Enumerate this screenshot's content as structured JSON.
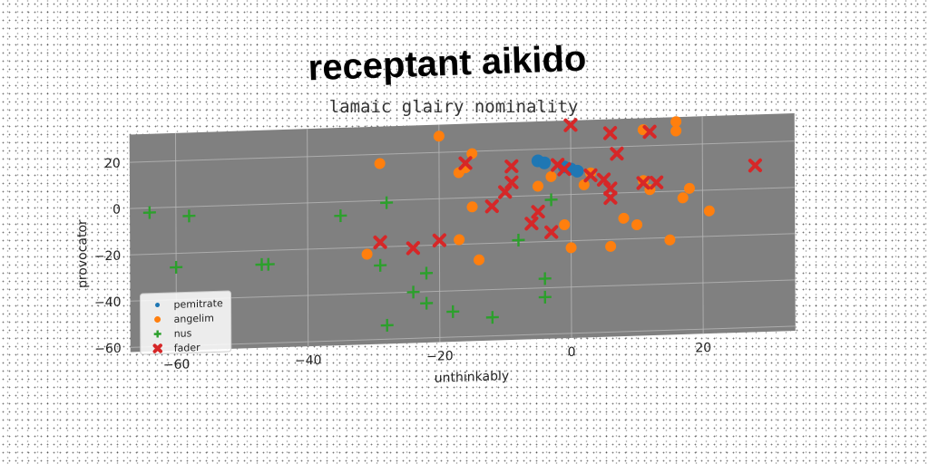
{
  "chart_data": {
    "type": "scatter",
    "title": "receptant aikido",
    "subtitle": "lamaic glairy nominality",
    "xlabel": "unthinkably",
    "ylabel": "provocator",
    "xlim": [
      -67,
      34
    ],
    "ylim": [
      -62,
      32
    ],
    "xticks": [
      -60,
      -40,
      -20,
      0,
      20
    ],
    "yticks": [
      -60,
      -40,
      -20,
      0,
      20
    ],
    "grid": true,
    "legend": "bottom-left",
    "series": [
      {
        "name": "pemitrate",
        "marker": "circle",
        "color": "#1f77b4",
        "points": [
          [
            -5,
            15
          ],
          [
            -4,
            14
          ],
          [
            -1,
            12
          ],
          [
            0,
            11
          ],
          [
            1,
            10
          ]
        ]
      },
      {
        "name": "angelim",
        "marker": "circle",
        "color": "#ff7f0e",
        "points": [
          [
            -20,
            27
          ],
          [
            -29,
            16
          ],
          [
            -15,
            19
          ],
          [
            -17,
            11
          ],
          [
            -16,
            13
          ],
          [
            -15,
            -4
          ],
          [
            -14,
            -27
          ],
          [
            -17,
            -18
          ],
          [
            -31,
            -23
          ],
          [
            -5,
            4
          ],
          [
            -3,
            8
          ],
          [
            2,
            4
          ],
          [
            3,
            9
          ],
          [
            8,
            -11
          ],
          [
            10,
            -14
          ],
          [
            11,
            27
          ],
          [
            11,
            5
          ],
          [
            12,
            1
          ],
          [
            16,
            30
          ],
          [
            16,
            26
          ],
          [
            17,
            -3
          ],
          [
            18,
            1
          ],
          [
            21,
            -9
          ],
          [
            15,
            -21
          ],
          [
            6,
            -23
          ],
          [
            0,
            -23
          ],
          [
            -1,
            -13
          ]
        ]
      },
      {
        "name": "nus",
        "marker": "plus",
        "color": "#2ca02c",
        "points": [
          [
            -64,
            -2
          ],
          [
            -58,
            -4
          ],
          [
            -60,
            -26
          ],
          [
            -47,
            -26
          ],
          [
            -46,
            -26
          ],
          [
            -35,
            -6
          ],
          [
            -28,
            -1
          ],
          [
            -29,
            -28
          ],
          [
            -28,
            -54
          ],
          [
            -24,
            -40
          ],
          [
            -22,
            -32
          ],
          [
            -22,
            -45
          ],
          [
            -18,
            -49
          ],
          [
            -12,
            -52
          ],
          [
            -8,
            -19
          ],
          [
            -4,
            -36
          ],
          [
            -4,
            -44
          ],
          [
            -3,
            -2
          ]
        ]
      },
      {
        "name": "fader",
        "marker": "x",
        "color": "#d62728",
        "points": [
          [
            0,
            30
          ],
          [
            6,
            26
          ],
          [
            12,
            26
          ],
          [
            7,
            17
          ],
          [
            -2,
            13
          ],
          [
            -9,
            13
          ],
          [
            -9,
            6
          ],
          [
            -10,
            2
          ],
          [
            -12,
            -4
          ],
          [
            -16,
            15
          ],
          [
            -20,
            -18
          ],
          [
            -24,
            -21
          ],
          [
            -29,
            -18
          ],
          [
            -5,
            -7
          ],
          [
            -6,
            -12
          ],
          [
            -3,
            -16
          ],
          [
            5,
            6
          ],
          [
            6,
            2
          ],
          [
            6,
            -2
          ],
          [
            11,
            4
          ],
          [
            13,
            4
          ],
          [
            28,
            10
          ],
          [
            -1,
            11
          ],
          [
            3,
            8
          ]
        ]
      }
    ]
  }
}
